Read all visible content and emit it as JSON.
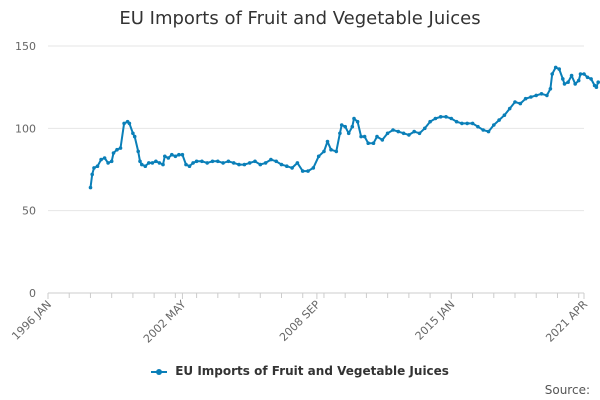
{
  "chart_data": {
    "type": "line",
    "title": "EU Imports of Fruit and Vegetable Juices",
    "xlabel": "",
    "ylabel": "",
    "x_ticks": [
      "1996 JAN",
      "2002 MAY",
      "2008 SEP",
      "2015 JAN",
      "2021 APR"
    ],
    "x_range": [
      "1996-01",
      "2021-04"
    ],
    "ylim": [
      0,
      150
    ],
    "y_ticks": [
      0,
      50,
      100,
      150
    ],
    "grid": true,
    "legend_position": "bottom",
    "source_label": "Source:",
    "colors": {
      "series": "#0a7fb8",
      "grid": "#e6e6e6",
      "axis": "#cccccc",
      "tick_label": "#666666"
    },
    "series": [
      {
        "name": "EU Imports of Fruit and Vegetable Juices",
        "points": [
          [
            "1998-01",
            64
          ],
          [
            "1998-02",
            72
          ],
          [
            "1998-03",
            76
          ],
          [
            "1998-05",
            77
          ],
          [
            "1998-07",
            81
          ],
          [
            "1998-09",
            82
          ],
          [
            "1998-11",
            79
          ],
          [
            "1999-01",
            80
          ],
          [
            "1999-02",
            85
          ],
          [
            "1999-04",
            87
          ],
          [
            "1999-06",
            88
          ],
          [
            "1999-08",
            103
          ],
          [
            "1999-10",
            104
          ],
          [
            "1999-11",
            103
          ],
          [
            "2000-01",
            97
          ],
          [
            "2000-02",
            95
          ],
          [
            "2000-04",
            86
          ],
          [
            "2000-05",
            80
          ],
          [
            "2000-06",
            78
          ],
          [
            "2000-08",
            77
          ],
          [
            "2000-10",
            79
          ],
          [
            "2000-12",
            79
          ],
          [
            "2001-02",
            80
          ],
          [
            "2001-04",
            79
          ],
          [
            "2001-06",
            78
          ],
          [
            "2001-07",
            83
          ],
          [
            "2001-09",
            82
          ],
          [
            "2001-11",
            84
          ],
          [
            "2002-01",
            83
          ],
          [
            "2002-03",
            84
          ],
          [
            "2002-05",
            84
          ],
          [
            "2002-07",
            78
          ],
          [
            "2002-09",
            77
          ],
          [
            "2002-11",
            79
          ],
          [
            "2003-01",
            80
          ],
          [
            "2003-04",
            80
          ],
          [
            "2003-07",
            79
          ],
          [
            "2003-10",
            80
          ],
          [
            "2004-01",
            80
          ],
          [
            "2004-04",
            79
          ],
          [
            "2004-07",
            80
          ],
          [
            "2004-10",
            79
          ],
          [
            "2005-01",
            78
          ],
          [
            "2005-04",
            78
          ],
          [
            "2005-07",
            79
          ],
          [
            "2005-10",
            80
          ],
          [
            "2006-01",
            78
          ],
          [
            "2006-04",
            79
          ],
          [
            "2006-07",
            81
          ],
          [
            "2006-10",
            80
          ],
          [
            "2007-01",
            78
          ],
          [
            "2007-04",
            77
          ],
          [
            "2007-07",
            76
          ],
          [
            "2007-10",
            79
          ],
          [
            "2008-01",
            74
          ],
          [
            "2008-04",
            74
          ],
          [
            "2008-07",
            76
          ],
          [
            "2008-10",
            83
          ],
          [
            "2009-01",
            86
          ],
          [
            "2009-03",
            92
          ],
          [
            "2009-05",
            87
          ],
          [
            "2009-08",
            86
          ],
          [
            "2009-10",
            97
          ],
          [
            "2009-11",
            102
          ],
          [
            "2010-01",
            101
          ],
          [
            "2010-03",
            97
          ],
          [
            "2010-05",
            101
          ],
          [
            "2010-06",
            106
          ],
          [
            "2010-08",
            104
          ],
          [
            "2010-10",
            95
          ],
          [
            "2010-12",
            95
          ],
          [
            "2011-02",
            91
          ],
          [
            "2011-05",
            91
          ],
          [
            "2011-07",
            95
          ],
          [
            "2011-10",
            93
          ],
          [
            "2012-01",
            97
          ],
          [
            "2012-04",
            99
          ],
          [
            "2012-07",
            98
          ],
          [
            "2012-10",
            97
          ],
          [
            "2013-01",
            96
          ],
          [
            "2013-04",
            98
          ],
          [
            "2013-07",
            97
          ],
          [
            "2013-10",
            100
          ],
          [
            "2014-01",
            104
          ],
          [
            "2014-04",
            106
          ],
          [
            "2014-07",
            107
          ],
          [
            "2014-10",
            107
          ],
          [
            "2015-01",
            106
          ],
          [
            "2015-04",
            104
          ],
          [
            "2015-07",
            103
          ],
          [
            "2015-10",
            103
          ],
          [
            "2016-01",
            103
          ],
          [
            "2016-04",
            101
          ],
          [
            "2016-07",
            99
          ],
          [
            "2016-10",
            98
          ],
          [
            "2017-01",
            102
          ],
          [
            "2017-04",
            105
          ],
          [
            "2017-07",
            108
          ],
          [
            "2017-10",
            112
          ],
          [
            "2018-01",
            116
          ],
          [
            "2018-04",
            115
          ],
          [
            "2018-07",
            118
          ],
          [
            "2018-10",
            119
          ],
          [
            "2019-01",
            120
          ],
          [
            "2019-04",
            121
          ],
          [
            "2019-07",
            120
          ],
          [
            "2019-09",
            124
          ],
          [
            "2019-10",
            133
          ],
          [
            "2019-12",
            137
          ],
          [
            "2020-02",
            136
          ],
          [
            "2020-04",
            130
          ],
          [
            "2020-05",
            127
          ],
          [
            "2020-07",
            128
          ],
          [
            "2020-09",
            132
          ],
          [
            "2020-11",
            127
          ],
          [
            "2021-01",
            129
          ],
          [
            "2021-02",
            133
          ],
          [
            "2021-04",
            133
          ],
          [
            "2021-06",
            131
          ],
          [
            "2021-08",
            130
          ],
          [
            "2021-10",
            126
          ],
          [
            "2021-11",
            125
          ],
          [
            "2021-12",
            128
          ]
        ]
      }
    ]
  }
}
